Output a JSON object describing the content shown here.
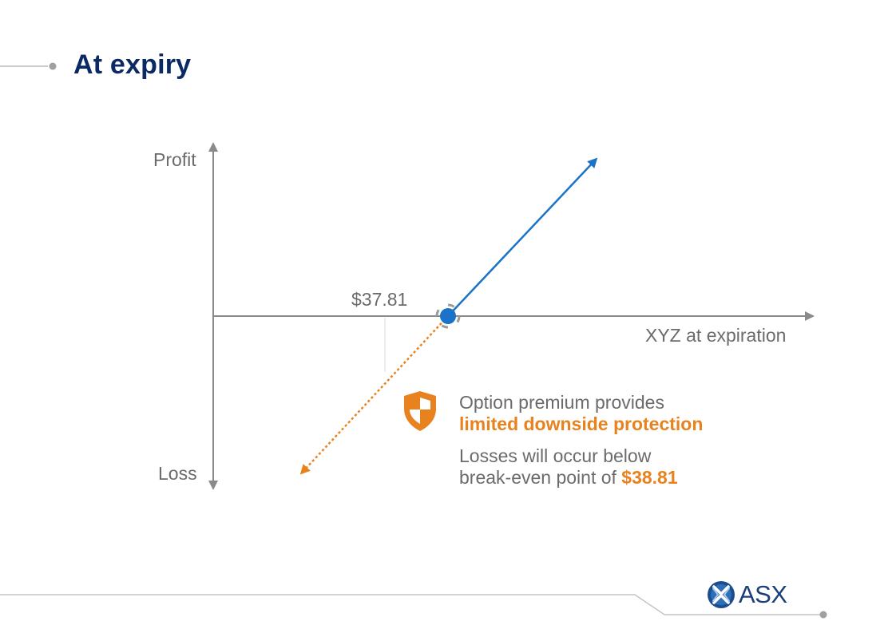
{
  "slide": {
    "title": "At expiry"
  },
  "diagram": {
    "y_axis_top_label": "Profit",
    "y_axis_bottom_label": "Loss",
    "x_axis_label": "XYZ at expiration",
    "price_label": "$37.81",
    "colors": {
      "axis": "#8a8a8a",
      "profit_line": "#1a73c8",
      "loss_line": "#e8821e",
      "marker": "#1a73c8"
    }
  },
  "callout": {
    "icon": "shield-icon",
    "line1": "Option premium provides",
    "line2": "limited downside protection",
    "line3": "Losses will occur below",
    "line4_prefix": "break-even point of ",
    "line4_value": "$38.81"
  },
  "footer": {
    "logo_text": "ASX",
    "logo_icon": "asx-logo-icon"
  }
}
